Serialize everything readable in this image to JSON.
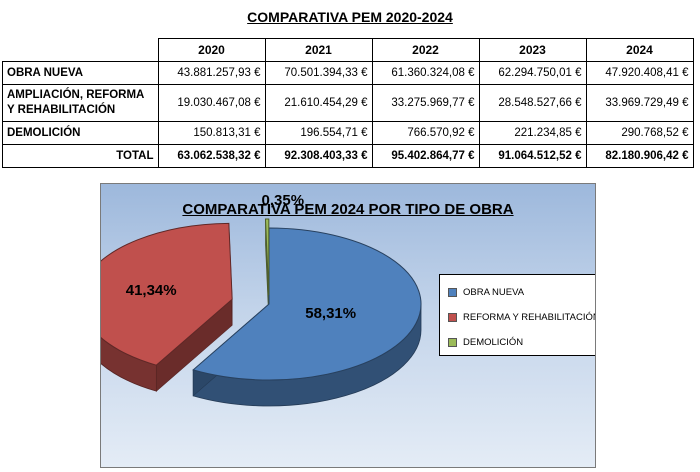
{
  "page_title": "COMPARATIVA PEM 2020-2024",
  "table": {
    "columns": [
      "2020",
      "2021",
      "2022",
      "2023",
      "2024"
    ],
    "rows": [
      {
        "label": "OBRA NUEVA",
        "values": [
          "43.881.257,93 €",
          "70.501.394,33 €",
          "61.360.324,08 €",
          "62.294.750,01 €",
          "47.920.408,41 €"
        ]
      },
      {
        "label_line1": "AMPLIACIÓN, REFORMA",
        "label_line2": "Y REHABILITACIÓN",
        "values": [
          "19.030.467,08 €",
          "21.610.454,29 €",
          "33.275.969,77 €",
          "28.548.527,66 €",
          "33.969.729,49 €"
        ]
      },
      {
        "label": "DEMOLICIÓN",
        "values": [
          "150.813,31 €",
          "196.554,71 €",
          "766.570,92 €",
          "221.234,85 €",
          "290.768,52 €"
        ]
      }
    ],
    "total": {
      "label": "TOTAL",
      "values": [
        "63.062.538,32 €",
        "92.308.403,33 €",
        "95.402.864,77 €",
        "91.064.512,52 €",
        "82.180.906,42 €"
      ]
    }
  },
  "chart_data": {
    "type": "pie",
    "title": "COMPARATIVA PEM 2024 POR TIPO DE OBRA",
    "labels": [
      "OBRA NUEVA",
      "REFORMA Y REHABILITACIÓN",
      "DEMOLICIÓN"
    ],
    "values": [
      58.31,
      41.34,
      0.35
    ],
    "data_labels": [
      "58,31%",
      "41,34%",
      "0,35%"
    ],
    "colors": [
      "#4f81bd",
      "#c0504d",
      "#9bbb59"
    ],
    "style": "3d-exploded",
    "legend_position": "right"
  }
}
